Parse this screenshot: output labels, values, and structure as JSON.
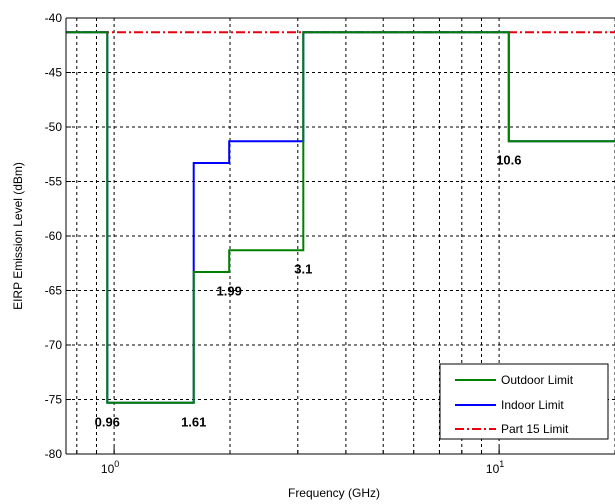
{
  "chart_data": {
    "type": "line",
    "xscale": "log",
    "xlim": [
      0.75,
      20
    ],
    "ylim": [
      -80,
      -40
    ],
    "grid": true,
    "xlabel": "Frequency (GHz)",
    "ylabel": "EIRP Emission Level (dBm)",
    "y_ticks": [
      -40,
      -45,
      -50,
      -55,
      -60,
      -65,
      -70,
      -75,
      -80
    ],
    "y_tick_labels": [
      "-40",
      "-45",
      "-50",
      "-55",
      "-60",
      "-65",
      "-70",
      "-75",
      "-80"
    ],
    "x_major_ticks": [
      {
        "value": 1,
        "base": "10",
        "exp": "0"
      },
      {
        "value": 10,
        "base": "10",
        "exp": "1"
      }
    ],
    "legend_position": "bottom-right",
    "series": [
      {
        "name": "Outdoor Limit",
        "color": "#008000",
        "style": "solid",
        "x": [
          0.75,
          0.96,
          0.96,
          1.61,
          1.61,
          1.99,
          1.99,
          3.1,
          3.1,
          10.6,
          10.6,
          20
        ],
        "y": [
          -41.3,
          -41.3,
          -75.3,
          -75.3,
          -63.3,
          -63.3,
          -61.3,
          -61.3,
          -41.3,
          -41.3,
          -51.3,
          -51.3
        ]
      },
      {
        "name": "Indoor Limit",
        "color": "#0000ff",
        "style": "solid",
        "x": [
          0.75,
          0.96,
          0.96,
          1.61,
          1.61,
          1.99,
          1.99,
          3.1,
          3.1,
          10.6,
          10.6,
          20
        ],
        "y": [
          -41.3,
          -41.3,
          -75.3,
          -75.3,
          -53.3,
          -53.3,
          -51.3,
          -51.3,
          -41.3,
          -41.3,
          -51.3,
          -51.3
        ]
      },
      {
        "name": "Part 15 Limit",
        "color": "#e8000b",
        "style": "dashdot",
        "x": [
          0.75,
          20
        ],
        "y": [
          -41.3,
          -41.3
        ]
      }
    ],
    "annotations": [
      {
        "text": "0.96",
        "x": 0.96,
        "y": -77
      },
      {
        "text": "1.61",
        "x": 1.61,
        "y": -77
      },
      {
        "text": "1.99",
        "x": 1.99,
        "y": -65
      },
      {
        "text": "3.1",
        "x": 3.1,
        "y": -63
      },
      {
        "text": "10.6",
        "x": 10.6,
        "y": -53
      }
    ]
  }
}
